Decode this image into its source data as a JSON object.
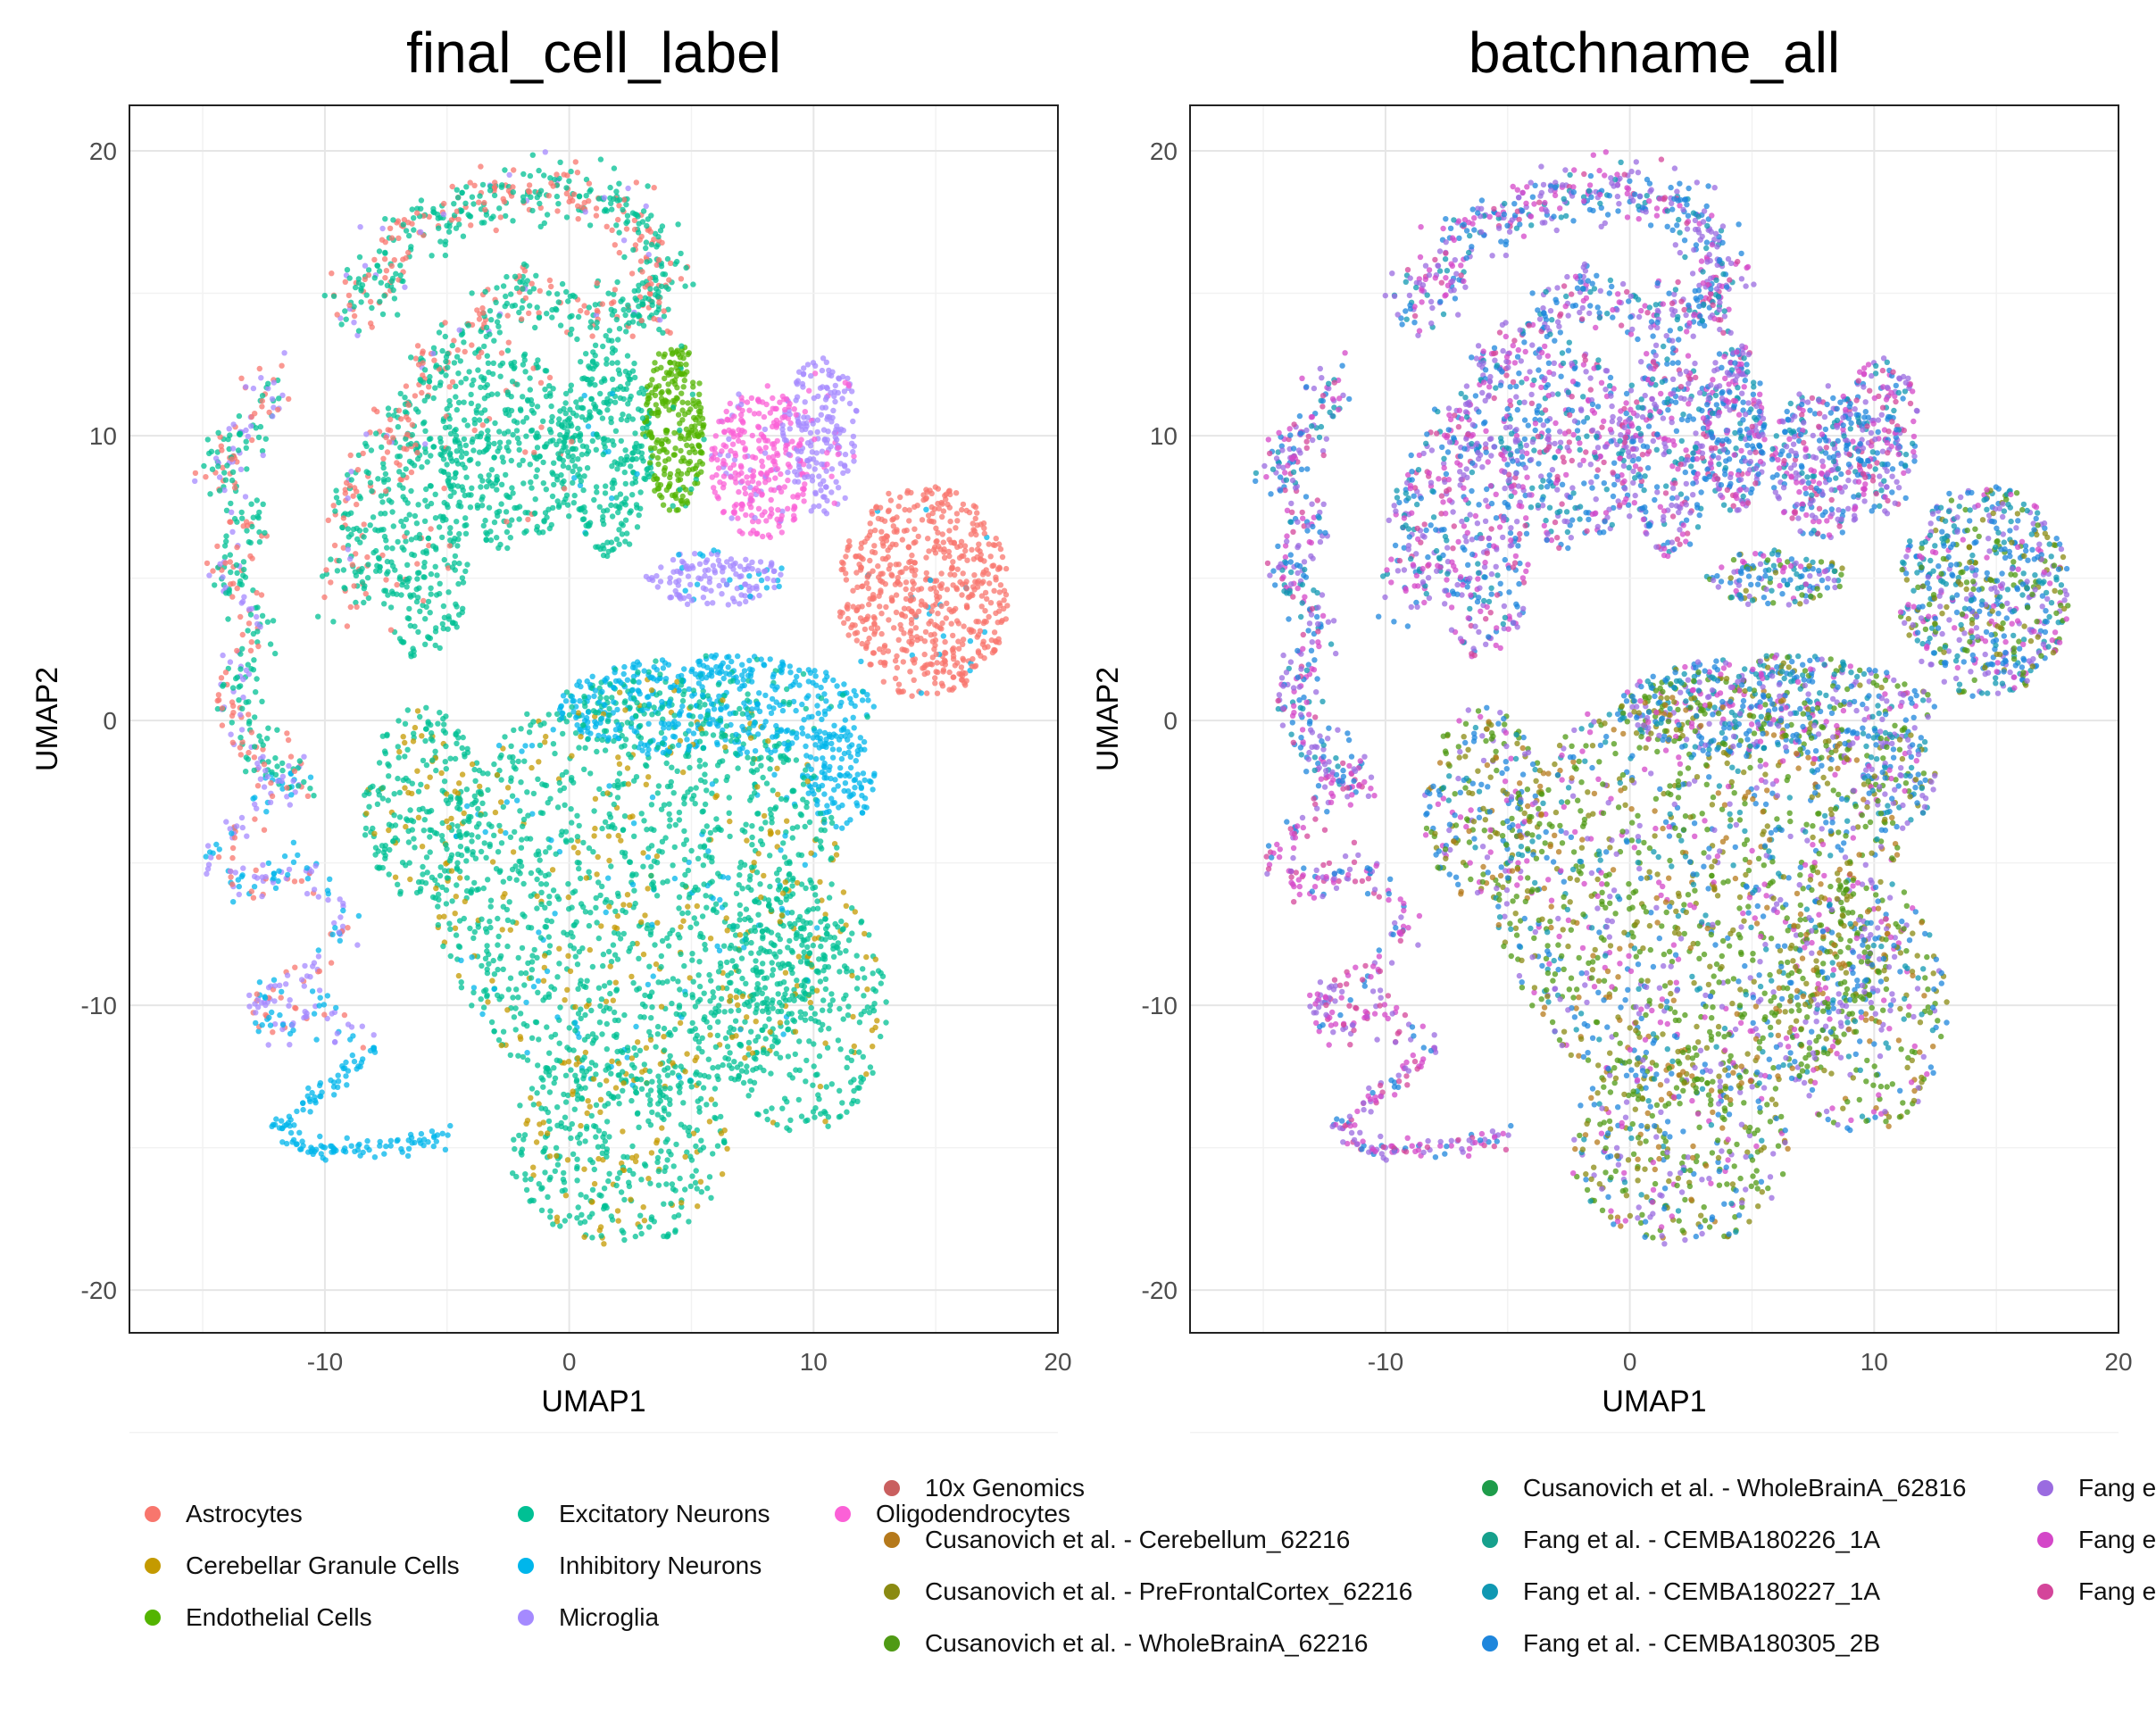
{
  "chart_data": [
    {
      "type": "scatter",
      "title": "final_cell_label",
      "xlabel": "UMAP1",
      "ylabel": "UMAP2",
      "xlim": [
        -18,
        20
      ],
      "ylim": [
        -21.5,
        21.6
      ],
      "xticks": [
        -10,
        0,
        10,
        20
      ],
      "yticks": [
        -20,
        -10,
        0,
        10,
        20
      ],
      "grid": true,
      "legend_position": "bottom",
      "series": [
        {
          "name": "Astrocytes",
          "color": "#F8766D"
        },
        {
          "name": "Cerebellar Granule Cells",
          "color": "#C49A00"
        },
        {
          "name": "Endothelial Cells",
          "color": "#53B400"
        },
        {
          "name": "Excitatory Neurons",
          "color": "#00C094"
        },
        {
          "name": "Inhibitory Neurons",
          "color": "#00B6EB"
        },
        {
          "name": "Microglia",
          "color": "#A58AFF"
        },
        {
          "name": "Oligodendrocytes",
          "color": "#FB61D7"
        }
      ]
    },
    {
      "type": "scatter",
      "title": "batchname_all",
      "xlabel": "UMAP1",
      "ylabel": "UMAP2",
      "xlim": [
        -18,
        20
      ],
      "ylim": [
        -21.5,
        21.6
      ],
      "xticks": [
        -10,
        0,
        10,
        20
      ],
      "yticks": [
        -20,
        -10,
        0,
        10,
        20
      ],
      "grid": true,
      "legend_position": "bottom",
      "series": [
        {
          "name": "10x Genomics",
          "color": "#C95F5F"
        },
        {
          "name": "Cusanovich et al. - Cerebellum_62216",
          "color": "#B5791B"
        },
        {
          "name": "Cusanovich et al. - PreFrontalCortex_62216",
          "color": "#8A8A12"
        },
        {
          "name": "Cusanovich et al. - WholeBrainA_62216",
          "color": "#4F9A14"
        },
        {
          "name": "Cusanovich et al. - WholeBrainA_62816",
          "color": "#1E9C4A"
        },
        {
          "name": "Fang et al. - CEMBA180226_1A",
          "color": "#16A08C"
        },
        {
          "name": "Fang et al. - CEMBA180227_1A",
          "color": "#1098B2"
        },
        {
          "name": "Fang et al. - CEMBA180305_2B",
          "color": "#1E86DC"
        },
        {
          "name": "Fang e",
          "color": "#9A6BE0"
        },
        {
          "name": "Fang e",
          "color": "#D447C8"
        },
        {
          "name": "Fang e",
          "color": "#D4459A"
        }
      ]
    }
  ]
}
